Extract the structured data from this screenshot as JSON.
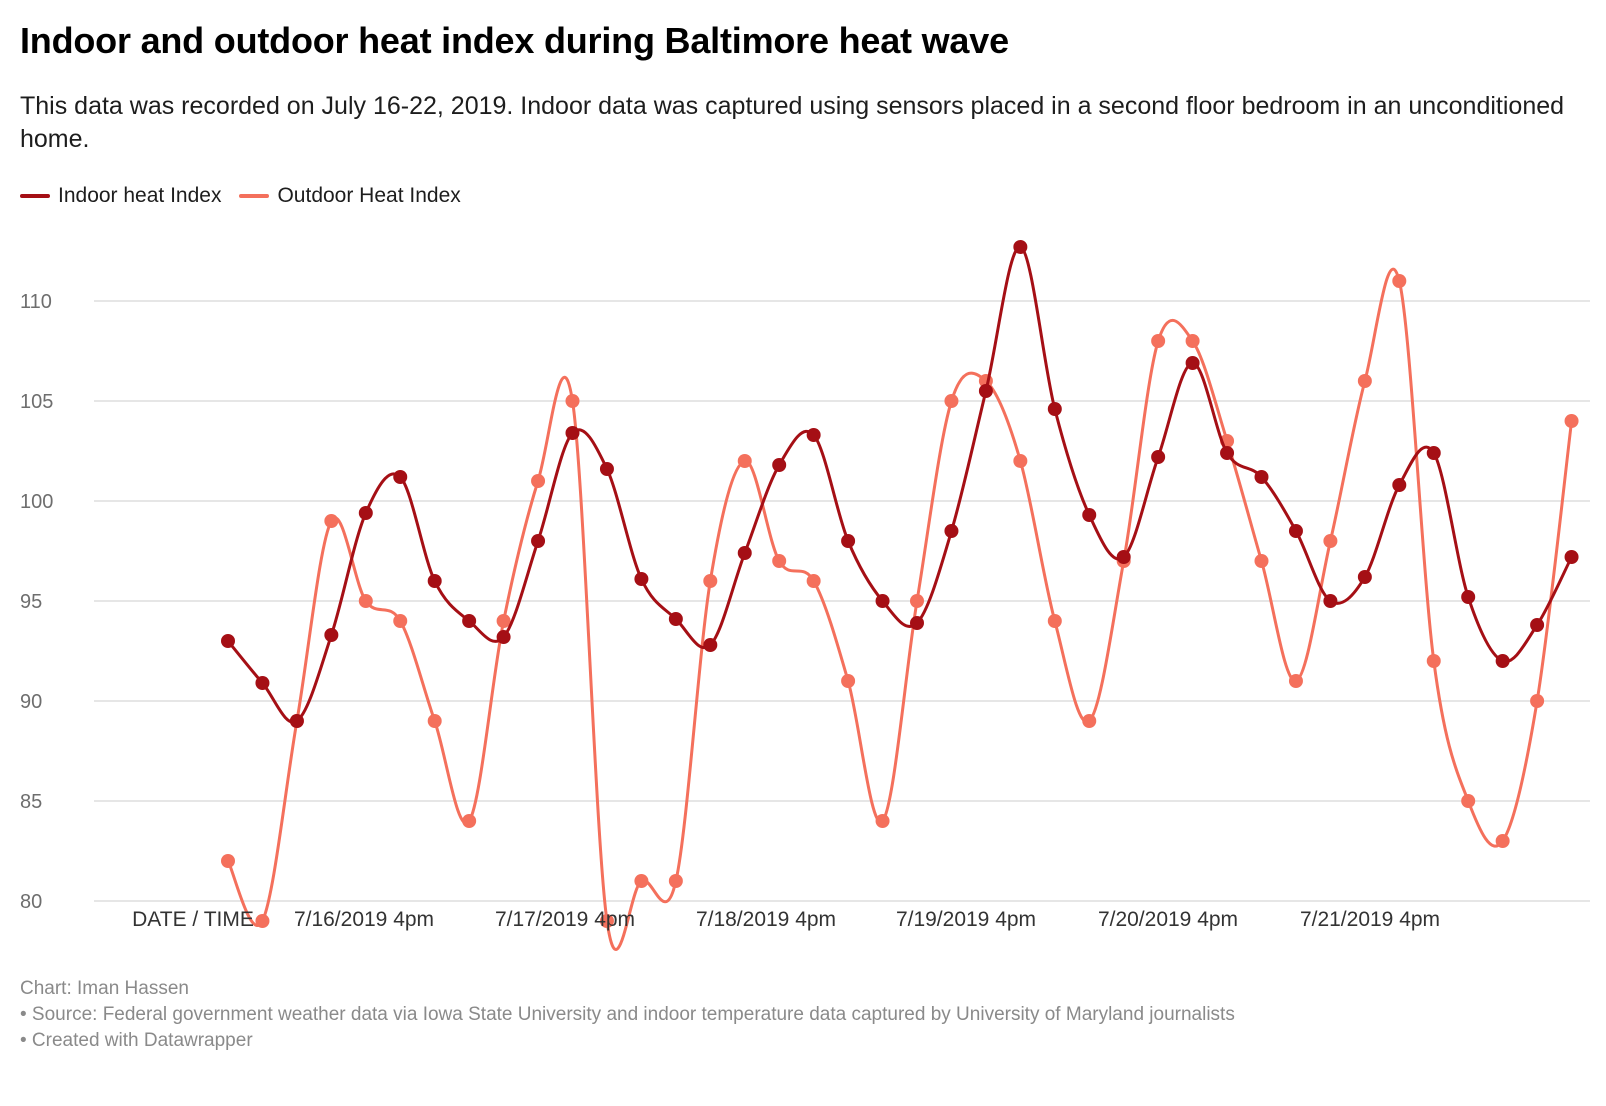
{
  "header": {
    "title": "Indoor and outdoor heat index during Baltimore heat wave",
    "subtitle": "This data was recorded on July 16-22, 2019. Indoor data was captured using sensors placed in a second floor bedroom in an unconditioned home."
  },
  "footer": {
    "credit": "Chart: Iman Hassen",
    "source": "• Source: Federal government weather data via Iowa State University and indoor temperature data captured by University of Maryland journalists",
    "tool": "• Created with Datawrapper"
  },
  "chart_data": {
    "type": "line",
    "x_tick_labels": [
      "DATE / TIME",
      "7/16/2019 4pm",
      "7/17/2019 4pm",
      "7/18/2019 4pm",
      "7/19/2019 4pm",
      "7/20/2019 4pm",
      "7/21/2019 4pm"
    ],
    "y_ticks": [
      80,
      85,
      90,
      95,
      100,
      105,
      110
    ],
    "ylim": [
      77.5,
      113
    ],
    "grid": true,
    "legend_position": "top-left",
    "series": [
      {
        "name": "Indoor heat Index",
        "color": "#a50f15",
        "values": [
          93.0,
          90.9,
          89.0,
          93.3,
          99.4,
          101.2,
          96.0,
          94.0,
          93.2,
          98.0,
          103.4,
          101.6,
          96.1,
          94.1,
          92.8,
          97.4,
          101.8,
          103.3,
          98.0,
          95.0,
          93.9,
          98.5,
          105.5,
          112.7,
          104.6,
          99.3,
          97.2,
          102.2,
          106.9,
          102.4,
          101.2,
          98.5,
          95.0,
          96.2,
          100.8,
          102.4,
          95.2,
          92.0,
          93.8,
          97.2
        ]
      },
      {
        "name": "Outdoor Heat Index",
        "color": "#f4705c",
        "values": [
          82,
          79,
          89,
          99,
          95,
          94,
          89,
          84,
          94,
          101,
          105,
          79,
          81,
          81,
          96,
          102,
          97,
          96,
          91,
          84,
          95,
          105,
          106,
          102,
          94,
          89,
          97,
          108,
          108,
          103,
          97,
          91,
          98,
          106,
          111,
          92,
          85,
          83,
          90,
          104
        ]
      }
    ]
  }
}
